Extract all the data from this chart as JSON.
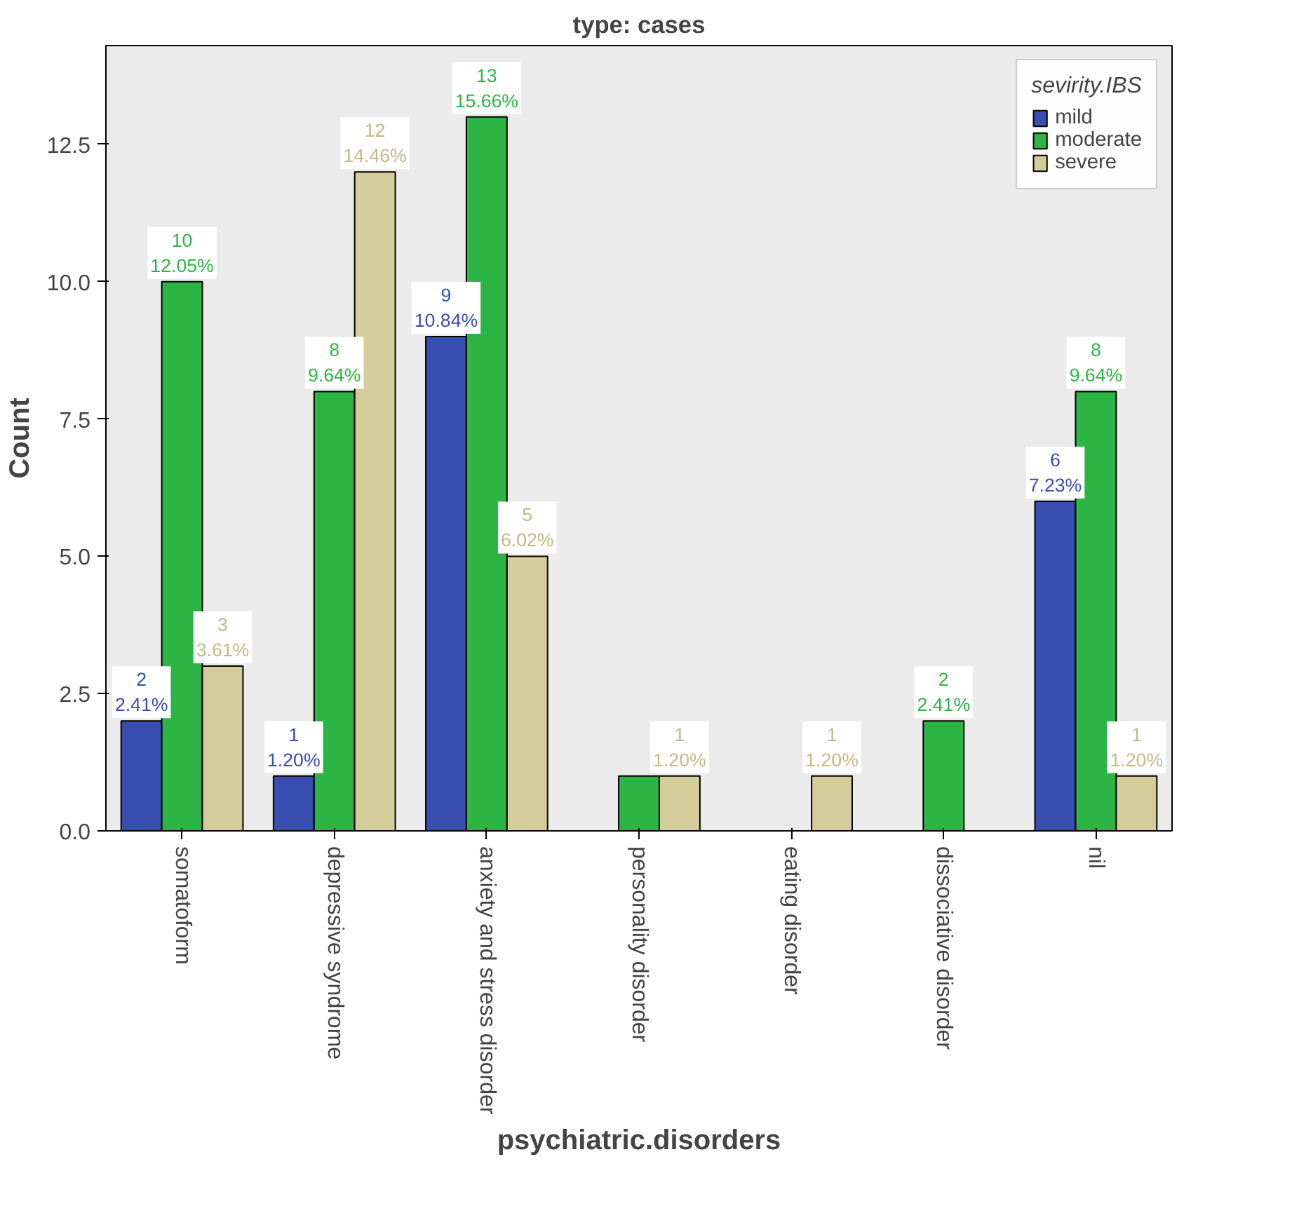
{
  "chart_data": {
    "type": "bar",
    "title": "type: cases",
    "xlabel": "psychiatric.disorders",
    "ylabel": "Count",
    "legend_title": "sevirity.IBS",
    "legend": "top right",
    "categories": [
      "somatoform",
      "depressive\nsyndrome",
      "anxiety and\nstress\ndisorder",
      "personality\ndisorder",
      "eating\ndisorder",
      "dissociative\ndisorder",
      "nil"
    ],
    "series": [
      {
        "name": "mild",
        "color": "#3a4db0",
        "values": [
          2,
          1,
          9,
          null,
          null,
          null,
          6
        ],
        "value_labels": [
          "2\n2.41%",
          "1\n1.20%",
          "9\n10.84%",
          null,
          null,
          null,
          "6\n7.23%"
        ]
      },
      {
        "name": "moderate",
        "color": "#2cb445",
        "values": [
          10,
          8,
          13,
          1,
          null,
          2,
          8
        ],
        "value_labels": [
          "10\n12.05%",
          "8\n9.64%",
          "13\n15.66%",
          null,
          null,
          "2\n2.41%",
          "8\n9.64%"
        ]
      },
      {
        "name": "severe",
        "color": "#d5cd99",
        "values": [
          3,
          12,
          5,
          1,
          1,
          null,
          1
        ],
        "value_labels": [
          "3\n3.61%",
          "12\n14.46%",
          "5\n6.02%",
          "1\n1.20%",
          "1\n1.20%",
          null,
          "1\n1.20%"
        ]
      }
    ],
    "ylim": [
      0,
      14.3
    ],
    "yticks": [
      {
        "value": 0,
        "label": "0.0"
      },
      {
        "value": 2.5,
        "label": "2.5"
      },
      {
        "value": 5,
        "label": "5.0"
      },
      {
        "value": 7.5,
        "label": "7.5"
      },
      {
        "value": 10,
        "label": "10.0"
      },
      {
        "value": 12.5,
        "label": "12.5"
      }
    ],
    "grid": false
  }
}
